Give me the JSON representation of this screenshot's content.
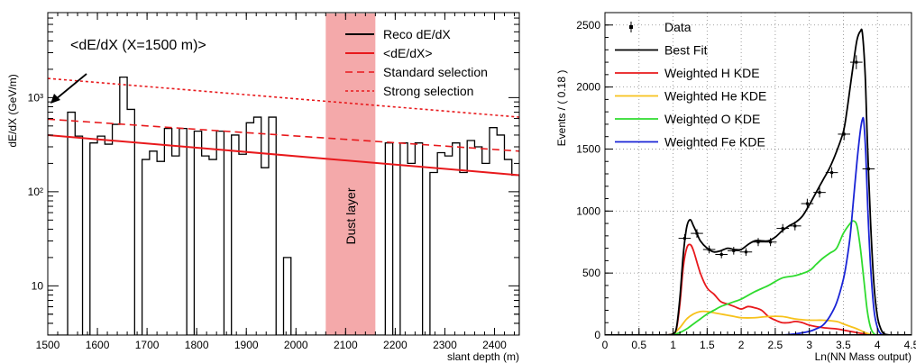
{
  "chart_data": [
    {
      "type": "step",
      "xlabel": "slant depth (m)",
      "ylabel": "dE/dX (GeV/m)",
      "xlim": [
        1500,
        2450
      ],
      "ylim": [
        3,
        8000
      ],
      "yscale": "log",
      "xticks": [
        1500,
        1600,
        1700,
        1800,
        1900,
        2000,
        2100,
        2200,
        2300,
        2400
      ],
      "yticks": [
        {
          "value": 10,
          "label": "10"
        },
        {
          "value": 100,
          "label": "10²"
        },
        {
          "value": 1000,
          "label": "10³"
        }
      ],
      "annotation": "<dE/dX (X=1500 m)>",
      "band": {
        "x0": 2060,
        "x1": 2160,
        "label": "Dust layer",
        "color": "#f4a9aa"
      },
      "legend": {
        "placement": "top-right",
        "entries": [
          {
            "label": "Reco dE/dX",
            "color": "#000000",
            "style": "solid"
          },
          {
            "label": "<dE/dX>",
            "color": "#e8191c",
            "style": "solid"
          },
          {
            "label": "Standard selection",
            "color": "#e8191c",
            "style": "dashed"
          },
          {
            "label": "Strong selection",
            "color": "#e8191c",
            "style": "dotted"
          }
        ]
      },
      "histogram": {
        "edges": [
          1500,
          1520,
          1540,
          1555,
          1570,
          1585,
          1600,
          1615,
          1630,
          1645,
          1660,
          1675,
          1690,
          1705,
          1720,
          1735,
          1750,
          1765,
          1780,
          1795,
          1810,
          1825,
          1840,
          1855,
          1870,
          1885,
          1900,
          1915,
          1930,
          1945,
          1960,
          1975,
          1990,
          2005,
          2020,
          2035,
          2050,
          2180,
          2195,
          2210,
          2225,
          2240,
          2255,
          2270,
          2285,
          2300,
          2315,
          2330,
          2345,
          2360,
          2375,
          2390,
          2405,
          2420,
          2435,
          2450
        ],
        "values": [
          3,
          3,
          700,
          390,
          3,
          330,
          390,
          320,
          520,
          1650,
          750,
          3,
          220,
          270,
          210,
          470,
          240,
          470,
          3,
          440,
          240,
          220,
          440,
          3,
          400,
          250,
          540,
          620,
          180,
          620,
          3,
          20,
          3,
          3,
          3,
          3,
          3,
          330,
          3,
          330,
          200,
          330,
          3,
          160,
          260,
          240,
          330,
          160,
          350,
          300,
          200,
          480,
          400,
          220,
          150
        ]
      },
      "lines": [
        {
          "name": "<dE/dX>",
          "x": [
            1500,
            2450
          ],
          "y": [
            400,
            150
          ],
          "color": "#e8191c",
          "style": "solid"
        },
        {
          "name": "Standard selection",
          "x": [
            1500,
            2450
          ],
          "y": [
            590,
            270
          ],
          "color": "#e8191c",
          "style": "dashed"
        },
        {
          "name": "Strong selection",
          "x": [
            1500,
            2450
          ],
          "y": [
            1600,
            620
          ],
          "color": "#e8191c",
          "style": "dotted"
        }
      ]
    },
    {
      "type": "line",
      "xlabel": "Ln(NN Mass output)",
      "ylabel": "Events / ( 0.18 )",
      "xlim": [
        0,
        4.5
      ],
      "ylim": [
        0,
        2600
      ],
      "xticks": [
        {
          "value": 0,
          "label": "0"
        },
        {
          "value": 0.5,
          "label": "0.5"
        },
        {
          "value": 1,
          "label": "1"
        },
        {
          "value": 1.5,
          "label": "1.5"
        },
        {
          "value": 2,
          "label": "2"
        },
        {
          "value": 2.5,
          "label": "2.5"
        },
        {
          "value": 3,
          "label": "3"
        },
        {
          "value": 3.5,
          "label": "3.5"
        },
        {
          "value": 4,
          "label": "4"
        },
        {
          "value": 4.5,
          "label": "4.5"
        }
      ],
      "yticks": [
        0,
        500,
        1000,
        1500,
        2000,
        2500
      ],
      "grid": true,
      "legend": {
        "placement": "top-left",
        "entries": [
          {
            "label": "Data",
            "color": "#000000",
            "style": "marker"
          },
          {
            "label": "Best Fit",
            "color": "#000000",
            "style": "solid"
          },
          {
            "label": "Weighted H KDE",
            "color": "#e8191c",
            "style": "solid"
          },
          {
            "label": "Weighted He KDE",
            "color": "#f7c21b",
            "style": "solid"
          },
          {
            "label": "Weighted O KDE",
            "color": "#2fdb2f",
            "style": "solid"
          },
          {
            "label": "Weighted Fe KDE",
            "color": "#1a24d6",
            "style": "solid"
          }
        ]
      },
      "data_points": {
        "x": [
          1.17,
          1.35,
          1.53,
          1.71,
          1.89,
          2.07,
          2.25,
          2.43,
          2.61,
          2.79,
          2.97,
          3.15,
          3.33,
          3.51,
          3.69,
          3.87
        ],
        "y": [
          780,
          820,
          690,
          650,
          680,
          670,
          750,
          750,
          860,
          880,
          1060,
          1150,
          1310,
          1620,
          2200,
          1340
        ],
        "xerr": 0.09
      },
      "series": [
        {
          "name": "Best Fit",
          "color": "#000000",
          "x": [
            0.9,
            1.0,
            1.05,
            1.1,
            1.15,
            1.2,
            1.25,
            1.3,
            1.35,
            1.4,
            1.5,
            1.6,
            1.7,
            1.8,
            1.9,
            2.0,
            2.1,
            2.2,
            2.3,
            2.4,
            2.5,
            2.6,
            2.7,
            2.8,
            2.9,
            3.0,
            3.1,
            3.2,
            3.3,
            3.4,
            3.5,
            3.55,
            3.6,
            3.65,
            3.7,
            3.75,
            3.78,
            3.82,
            3.85,
            3.9,
            3.95,
            4.0,
            4.05,
            4.1,
            4.2
          ],
          "y": [
            0,
            10,
            60,
            300,
            650,
            870,
            930,
            880,
            820,
            760,
            700,
            670,
            680,
            700,
            690,
            690,
            730,
            760,
            760,
            760,
            790,
            840,
            880,
            910,
            960,
            1050,
            1150,
            1250,
            1350,
            1480,
            1640,
            1800,
            2000,
            2200,
            2380,
            2450,
            2430,
            2100,
            1600,
            900,
            400,
            150,
            50,
            10,
            0
          ]
        },
        {
          "name": "Weighted H KDE",
          "color": "#e8191c",
          "x": [
            0.9,
            1.0,
            1.05,
            1.1,
            1.15,
            1.2,
            1.25,
            1.3,
            1.4,
            1.5,
            1.6,
            1.7,
            1.8,
            1.9,
            2.0,
            2.1,
            2.2,
            2.3,
            2.4,
            2.5,
            2.6,
            2.7,
            2.8,
            2.9,
            3.0,
            3.2,
            3.4,
            3.5,
            3.6,
            3.7,
            3.8,
            3.9,
            4.0
          ],
          "y": [
            0,
            10,
            50,
            250,
            550,
            700,
            730,
            680,
            500,
            380,
            330,
            270,
            250,
            230,
            210,
            230,
            220,
            200,
            150,
            120,
            100,
            100,
            110,
            100,
            80,
            60,
            50,
            40,
            30,
            20,
            10,
            3,
            0
          ]
        },
        {
          "name": "Weighted He KDE",
          "color": "#f7c21b",
          "x": [
            0.9,
            1.0,
            1.1,
            1.2,
            1.3,
            1.4,
            1.5,
            1.6,
            1.7,
            1.8,
            1.9,
            2.0,
            2.2,
            2.4,
            2.6,
            2.8,
            3.0,
            3.2,
            3.4,
            3.5,
            3.6,
            3.7,
            3.8,
            3.9,
            4.0
          ],
          "y": [
            0,
            10,
            60,
            130,
            170,
            190,
            190,
            180,
            170,
            160,
            150,
            140,
            140,
            150,
            150,
            130,
            120,
            120,
            110,
            90,
            70,
            50,
            25,
            5,
            0
          ]
        },
        {
          "name": "Weighted O KDE",
          "color": "#2fdb2f",
          "x": [
            0.9,
            1.0,
            1.1,
            1.2,
            1.3,
            1.4,
            1.5,
            1.6,
            1.7,
            1.8,
            1.9,
            2.0,
            2.2,
            2.4,
            2.6,
            2.8,
            3.0,
            3.1,
            3.2,
            3.3,
            3.4,
            3.5,
            3.6,
            3.65,
            3.7,
            3.75,
            3.8,
            3.85,
            3.9,
            3.95,
            4.0
          ],
          "y": [
            0,
            3,
            20,
            50,
            90,
            130,
            170,
            200,
            230,
            250,
            270,
            290,
            350,
            400,
            460,
            480,
            520,
            570,
            620,
            660,
            700,
            820,
            900,
            920,
            880,
            700,
            450,
            200,
            60,
            10,
            0
          ]
        },
        {
          "name": "Weighted Fe KDE",
          "color": "#1a24d6",
          "x": [
            2.6,
            2.8,
            3.0,
            3.1,
            3.2,
            3.3,
            3.4,
            3.5,
            3.55,
            3.6,
            3.65,
            3.7,
            3.75,
            3.78,
            3.8,
            3.83,
            3.86,
            3.9,
            3.95,
            4.0,
            4.05,
            4.1
          ],
          "y": [
            0,
            10,
            30,
            50,
            80,
            150,
            260,
            450,
            600,
            800,
            1100,
            1400,
            1650,
            1740,
            1720,
            1450,
            1000,
            550,
            200,
            60,
            10,
            0
          ]
        }
      ]
    }
  ]
}
